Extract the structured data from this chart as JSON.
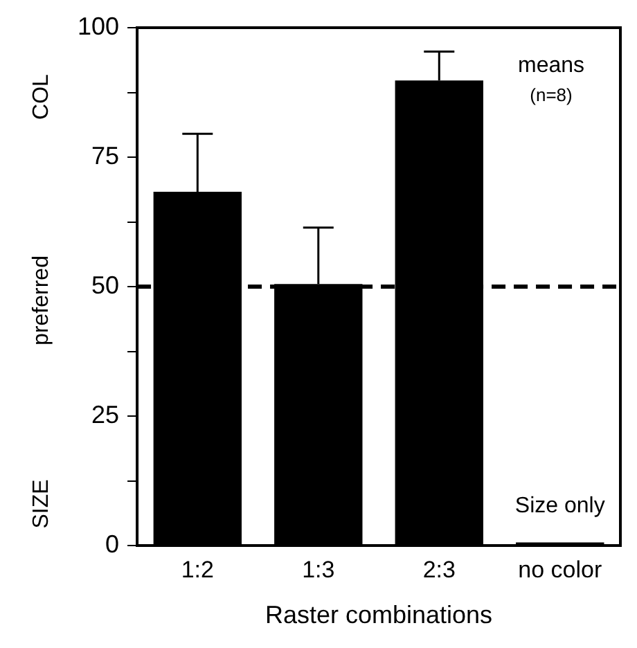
{
  "chart_data": {
    "type": "bar",
    "xlabel": "Raster combinations",
    "ylabel": "SIZE preferred COL",
    "categories": [
      "1:2",
      "1:3",
      "2:3",
      "no color"
    ],
    "values": [
      68.3,
      50.5,
      89.8,
      0.6
    ],
    "errors": [
      [
        68.3,
        79.5
      ],
      [
        50.5,
        61.4
      ],
      [
        89.8,
        95.4
      ],
      null
    ],
    "color": "#000000",
    "ylim": [
      0,
      100
    ],
    "yticks": [
      0,
      {
        "value": 12.5,
        "label": null
      },
      25,
      {
        "value": 37.5,
        "label": null
      },
      50,
      {
        "value": 62.5,
        "label": null
      },
      75,
      {
        "value": 87.5,
        "label": null
      },
      100
    ],
    "ref_lines": [
      {
        "axis": "y",
        "value": 50,
        "line_style": "dashed",
        "color": "#000000"
      }
    ],
    "annotations": [
      "means",
      "(n=8)",
      {
        "text": "Size only",
        "x": "no color",
        "y": 0.6
      }
    ],
    "grid": false,
    "legend": false
  }
}
